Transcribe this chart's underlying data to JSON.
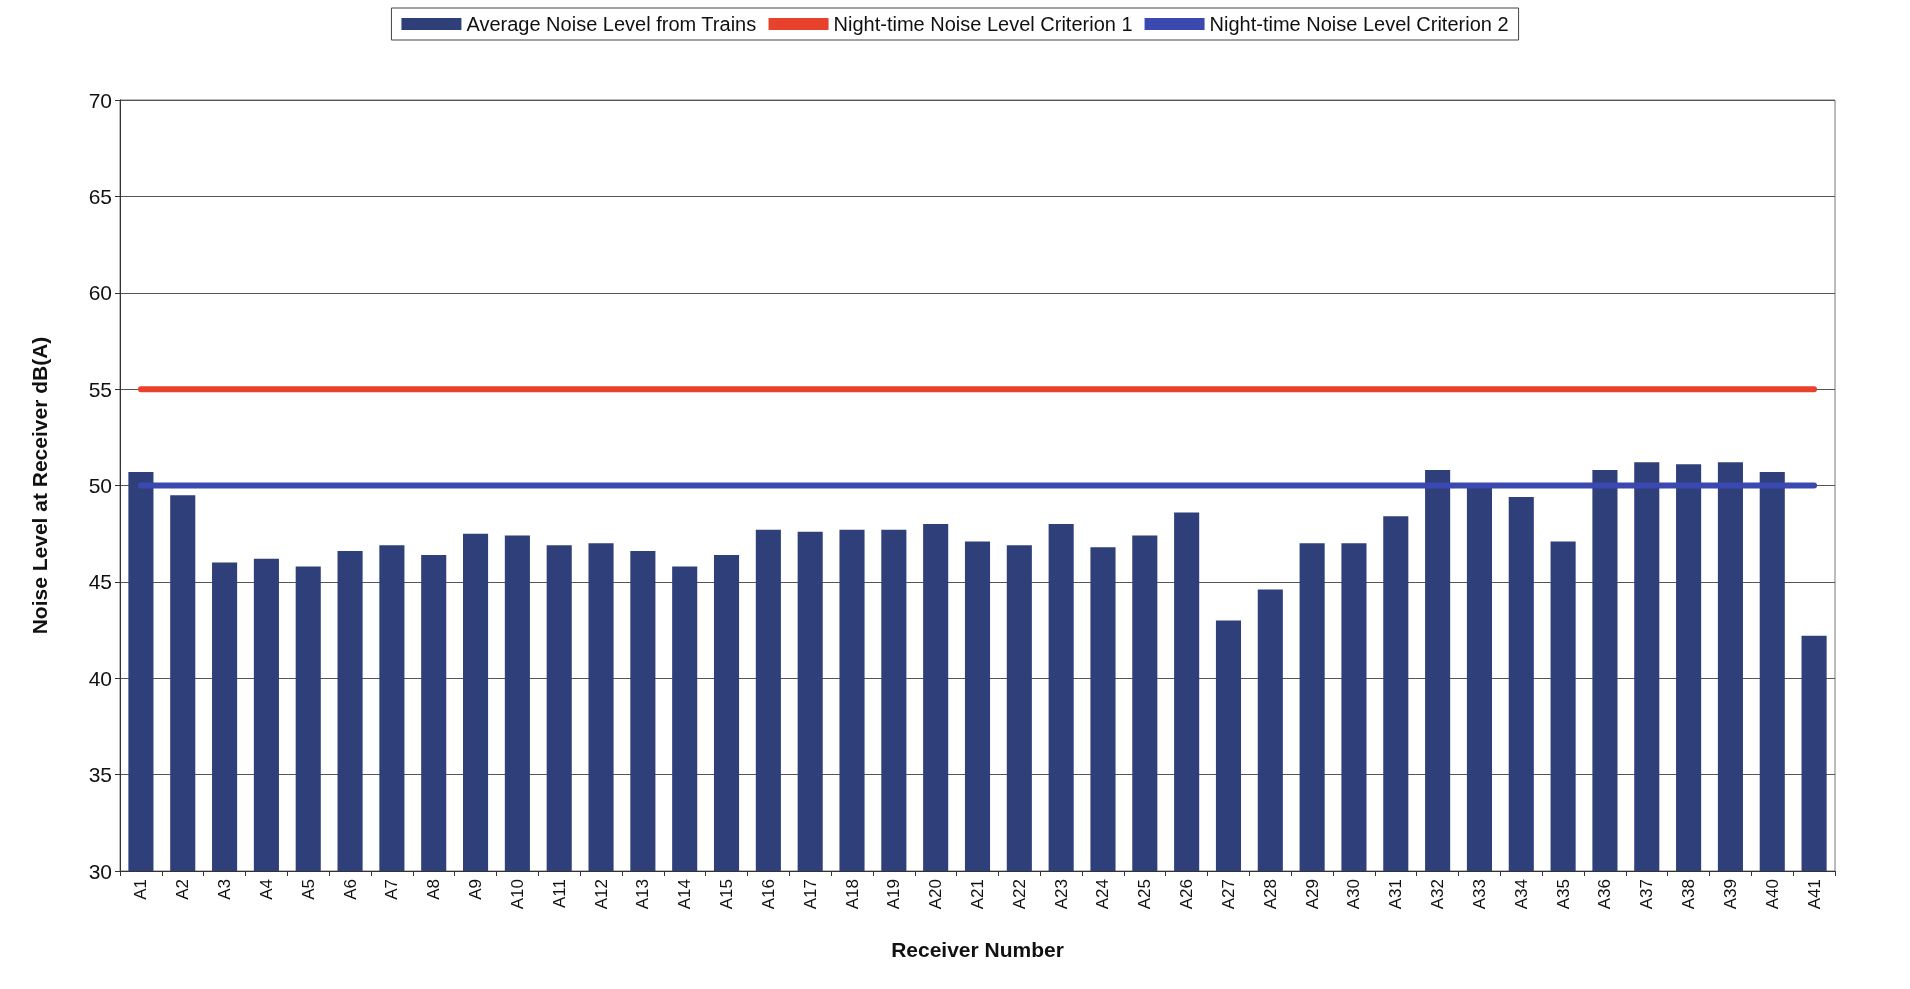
{
  "chart_data": {
    "type": "bar",
    "xlabel": "Receiver Number",
    "ylabel": "Noise Level at Receiver dB(A)",
    "categories": [
      "A1",
      "A2",
      "A3",
      "A4",
      "A5",
      "A6",
      "A7",
      "A8",
      "A9",
      "A10",
      "A11",
      "A12",
      "A13",
      "A14",
      "A15",
      "A16",
      "A17",
      "A18",
      "A19",
      "A20",
      "A21",
      "A22",
      "A23",
      "A24",
      "A25",
      "A26",
      "A27",
      "A28",
      "A29",
      "A30",
      "A31",
      "A32",
      "A33",
      "A34",
      "A35",
      "A36",
      "A37",
      "A38",
      "A39",
      "A40",
      "A41"
    ],
    "series": [
      {
        "name": "Average Noise Level from Trains",
        "color": "#2f3f7a",
        "values": [
          50.7,
          49.5,
          46.0,
          46.2,
          45.8,
          46.6,
          46.9,
          46.4,
          47.5,
          47.4,
          46.9,
          47.0,
          46.6,
          45.8,
          46.4,
          47.7,
          47.6,
          47.7,
          47.7,
          48.0,
          47.1,
          46.9,
          48.0,
          46.8,
          47.4,
          48.6,
          43.0,
          44.6,
          47.0,
          47.0,
          48.4,
          50.8,
          50.0,
          49.4,
          47.1,
          50.8,
          51.2,
          51.1,
          51.2,
          50.7,
          42.2
        ]
      },
      {
        "type": "line",
        "name": "Night-time Noise Level Criterion 1",
        "color": "#e8412c",
        "values": [
          55,
          55,
          55,
          55,
          55,
          55,
          55,
          55,
          55,
          55,
          55,
          55,
          55,
          55,
          55,
          55,
          55,
          55,
          55,
          55,
          55,
          55,
          55,
          55,
          55,
          55,
          55,
          55,
          55,
          55,
          55,
          55,
          55,
          55,
          55,
          55,
          55,
          55,
          55,
          55,
          55
        ]
      },
      {
        "type": "line",
        "name": "Night-time Noise Level Criterion 2",
        "color": "#3a48b0",
        "values": [
          50,
          50,
          50,
          50,
          50,
          50,
          50,
          50,
          50,
          50,
          50,
          50,
          50,
          50,
          50,
          50,
          50,
          50,
          50,
          50,
          50,
          50,
          50,
          50,
          50,
          50,
          50,
          50,
          50,
          50,
          50,
          50,
          50,
          50,
          50,
          50,
          50,
          50,
          50,
          50,
          50
        ]
      }
    ],
    "ylim": [
      30,
      70
    ],
    "yticks": [
      30,
      35,
      40,
      45,
      50,
      55,
      60,
      65,
      70
    ],
    "grid": "y",
    "legend": "top"
  }
}
